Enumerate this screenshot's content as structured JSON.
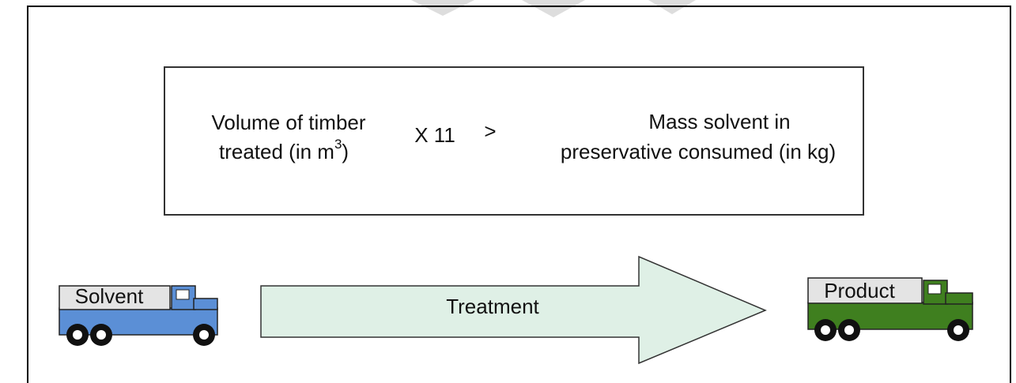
{
  "formula": {
    "left_line1": "Volume of timber",
    "left_line2": "treated (in m",
    "superscript": "3",
    "left_close": ")",
    "multiplier": "X 11",
    "operator": ">",
    "right_line1": "Mass solvent in",
    "right_line2": "preservative consumed (in kg)"
  },
  "arrow": {
    "label": "Treatment"
  },
  "trucks": [
    {
      "label": "Solvent"
    },
    {
      "label": "Product"
    }
  ]
}
